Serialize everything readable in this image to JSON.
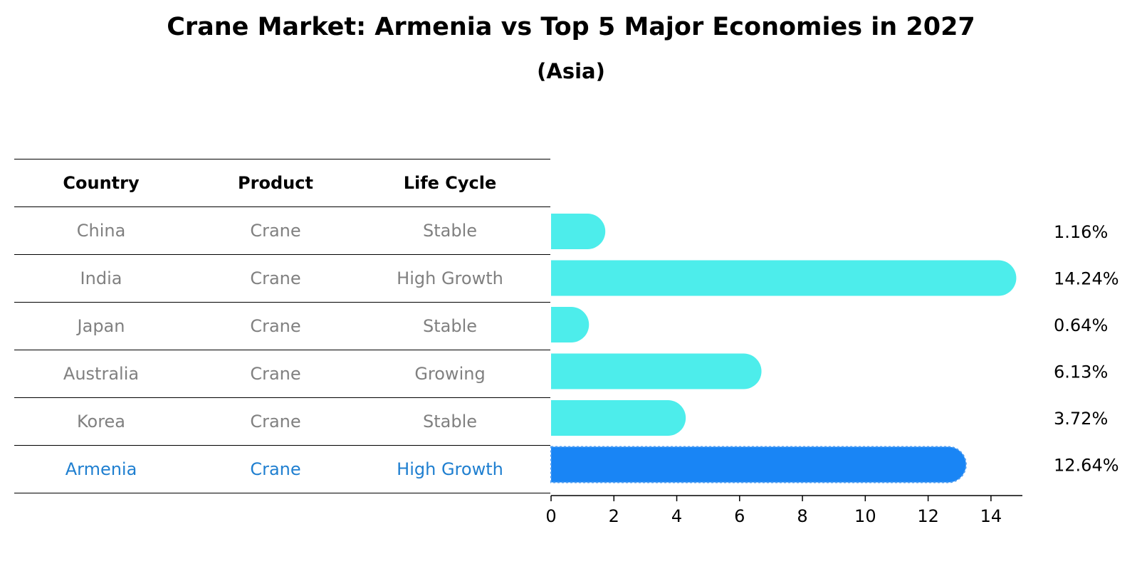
{
  "title": "Crane Market: Armenia vs Top 5 Major Economies in 2027",
  "subtitle": "(Asia)",
  "colors": {
    "bar_default": "#4DEDEB",
    "bar_highlight": "#1985F5",
    "text_highlight": "#1F7FD0",
    "text_muted": "#808080"
  },
  "table": {
    "headers": [
      "Country",
      "Product",
      "Life Cycle"
    ],
    "rows": [
      {
        "country": "China",
        "product": "Crane",
        "life_cycle": "Stable",
        "highlight": false
      },
      {
        "country": "India",
        "product": "Crane",
        "life_cycle": "High Growth",
        "highlight": false
      },
      {
        "country": "Japan",
        "product": "Crane",
        "life_cycle": "Stable",
        "highlight": false
      },
      {
        "country": "Australia",
        "product": "Crane",
        "life_cycle": "Growing",
        "highlight": false
      },
      {
        "country": "Korea",
        "product": "Crane",
        "life_cycle": "Stable",
        "highlight": false
      },
      {
        "country": "Armenia",
        "product": "Crane",
        "life_cycle": "High Growth",
        "highlight": true
      }
    ]
  },
  "chart_data": {
    "type": "bar",
    "orientation": "horizontal",
    "categories": [
      "China",
      "India",
      "Japan",
      "Australia",
      "Korea",
      "Armenia"
    ],
    "values": [
      1.16,
      14.24,
      0.64,
      6.13,
      3.72,
      12.64
    ],
    "labels": [
      "1.16%",
      "14.24%",
      "0.64%",
      "6.13%",
      "3.72%",
      "12.64%"
    ],
    "highlight_category": "Armenia",
    "xlim": [
      0,
      15
    ],
    "xticks": [
      0,
      2,
      4,
      6,
      8,
      10,
      12,
      14
    ],
    "xlabel": "",
    "ylabel": ""
  }
}
